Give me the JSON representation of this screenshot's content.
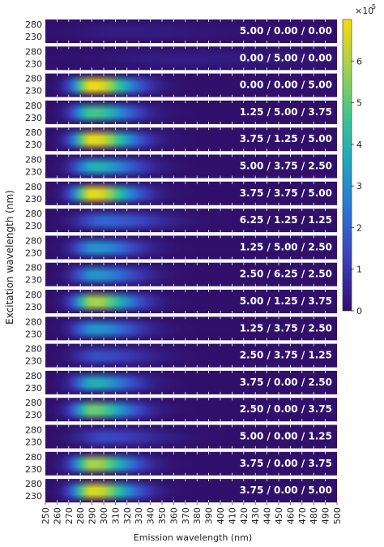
{
  "chart_data": {
    "type": "heatmap",
    "xlabel": "Emission wavelength (nm)",
    "ylabel": "Excitation wavelength (nm)",
    "x_ticks": [
      250,
      260,
      270,
      280,
      290,
      300,
      310,
      320,
      330,
      340,
      350,
      360,
      370,
      380,
      390,
      400,
      410,
      420,
      430,
      440,
      450,
      460,
      470,
      480,
      490,
      500
    ],
    "xlim": [
      250,
      500
    ],
    "y_ticks": [
      280,
      230
    ],
    "colorbar": {
      "ticks": [
        0,
        1,
        2,
        3,
        4,
        5,
        6
      ],
      "multiplier": "×10",
      "exponent": "5",
      "range": [
        0,
        700000
      ]
    },
    "colormap": [
      "#30106b",
      "#3b3cb8",
      "#2f6fd6",
      "#1fa3c4",
      "#3bc58e",
      "#a3d24a",
      "#f5d90e"
    ],
    "panels": [
      {
        "label": "5.00 / 0.00 / 0.00",
        "peak": 0.05,
        "center": 315,
        "width": 40
      },
      {
        "label": "0.00 / 5.00 / 0.00",
        "peak": 0.05,
        "center": 360,
        "width": 60
      },
      {
        "label": "0.00 / 0.00 / 5.00",
        "peak": 1.0,
        "center": 290,
        "width": 16
      },
      {
        "label": "1.25 / 5.00 / 3.75",
        "peak": 0.68,
        "center": 290,
        "width": 16
      },
      {
        "label": "3.75 / 1.25 / 5.00",
        "peak": 0.98,
        "center": 290,
        "width": 16
      },
      {
        "label": "5.00 / 3.75 / 2.50",
        "peak": 0.55,
        "center": 292,
        "width": 17
      },
      {
        "label": "3.75 / 3.75 / 5.00",
        "peak": 0.98,
        "center": 290,
        "width": 16
      },
      {
        "label": "6.25 / 1.25 / 1.25",
        "peak": 0.3,
        "center": 300,
        "width": 22
      },
      {
        "label": "1.25 / 5.00 / 2.50",
        "peak": 0.45,
        "center": 292,
        "width": 17
      },
      {
        "label": "2.50 / 6.25 / 2.50",
        "peak": 0.45,
        "center": 292,
        "width": 17
      },
      {
        "label": "5.00 / 1.25 / 3.75",
        "peak": 0.85,
        "center": 291,
        "width": 16
      },
      {
        "label": "1.25 / 3.75 / 2.50",
        "peak": 0.45,
        "center": 292,
        "width": 17
      },
      {
        "label": "2.50 / 3.75 / 1.25",
        "peak": 0.22,
        "center": 295,
        "width": 20
      },
      {
        "label": "3.75 / 0.00 / 2.50",
        "peak": 0.55,
        "center": 291,
        "width": 16
      },
      {
        "label": "2.50 / 0.00 / 3.75",
        "peak": 0.75,
        "center": 290,
        "width": 16
      },
      {
        "label": "5.00 / 0.00 / 1.25",
        "peak": 0.2,
        "center": 300,
        "width": 22
      },
      {
        "label": "3.75 / 0.00 / 3.75",
        "peak": 0.85,
        "center": 290,
        "width": 16
      },
      {
        "label": "3.75 / 0.00 / 5.00",
        "peak": 0.95,
        "center": 290,
        "width": 16
      }
    ]
  }
}
